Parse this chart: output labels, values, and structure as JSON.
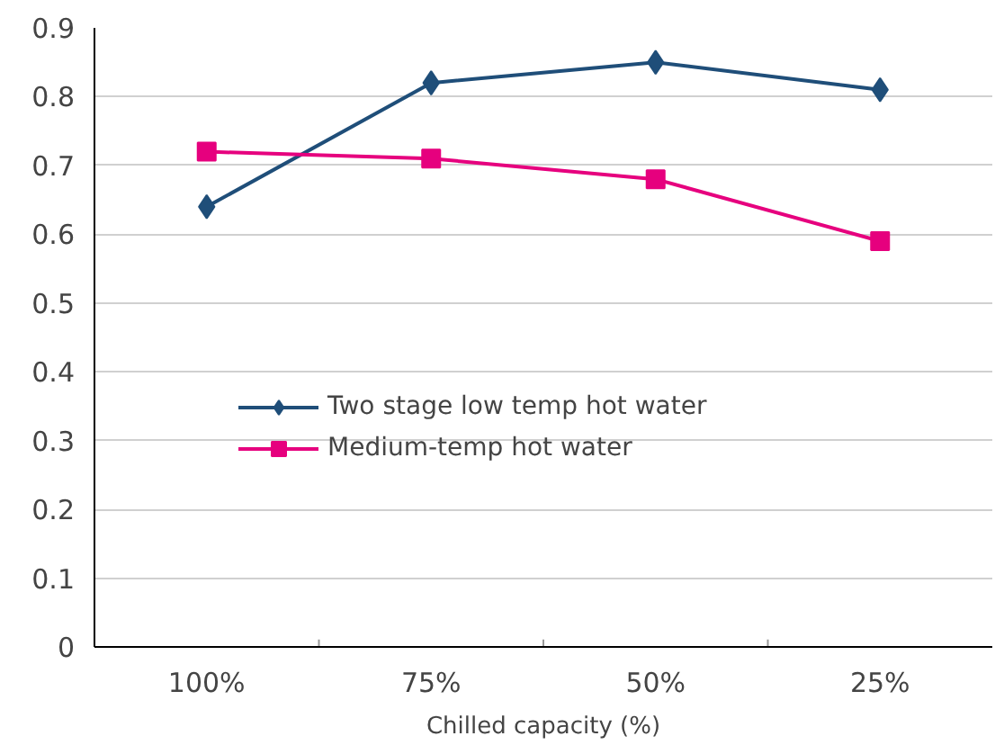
{
  "chart_data": {
    "type": "line",
    "xlabel": "Chilled capacity (%)",
    "categories": [
      "100%",
      "75%",
      "50%",
      "25%"
    ],
    "series": [
      {
        "name": "Two stage low temp hot water",
        "color": "#1f4e79",
        "values": [
          0.64,
          0.82,
          0.85,
          0.81
        ],
        "marker": "diamond"
      },
      {
        "name": "Medium-temp hot water",
        "color": "#e6007e",
        "values": [
          0.72,
          0.71,
          0.68,
          0.59
        ],
        "marker": "square"
      }
    ],
    "ylim": [
      0,
      0.9
    ],
    "yticks": [
      0,
      0.1,
      0.2,
      0.3,
      0.4,
      0.5,
      0.6,
      0.7,
      0.8,
      0.9
    ],
    "grid": "y",
    "legend": "bottom left"
  }
}
